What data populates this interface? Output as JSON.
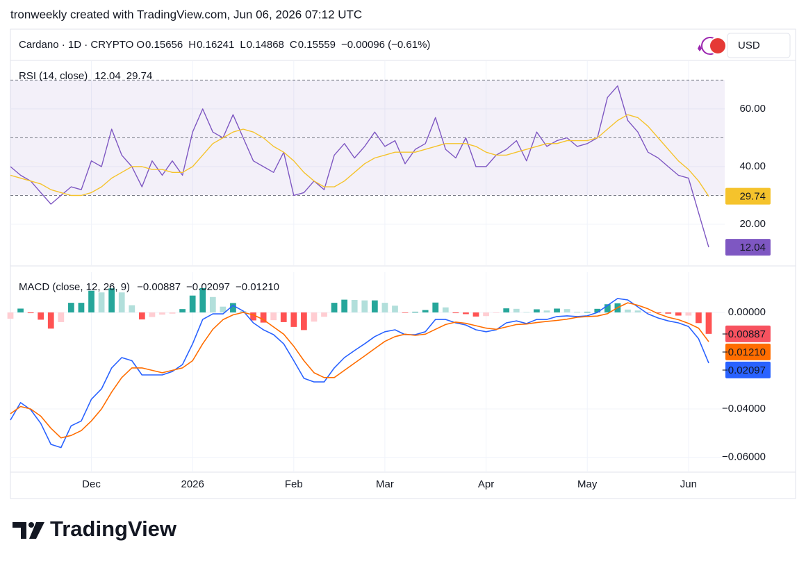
{
  "header": {
    "credit": "tronweekly created with TradingView.com, Jun 06, 2026 07:12 UTC"
  },
  "symbol": {
    "name": "Cardano · 1D · CRYPTO",
    "ohlc": [
      {
        "label": "O",
        "value": "0.15656"
      },
      {
        "label": "H",
        "value": "0.16241"
      },
      {
        "label": "L",
        "value": "0.14868"
      },
      {
        "label": "C",
        "value": "0.15559"
      }
    ],
    "change": "−0.00096 (−0.61%)"
  },
  "currency": "USD",
  "logo": "TradingView",
  "chart_data": [
    {
      "type": "line",
      "title": "RSI (14, close)",
      "ylim": [
        5.8,
        76.6
      ],
      "yticks": [
        {
          "value": 20,
          "label": "20.00"
        },
        {
          "value": 40,
          "label": "40.00"
        },
        {
          "value": 60,
          "label": "60.00"
        }
      ],
      "band": [
        30,
        70
      ],
      "midline": 50,
      "band_color": "#7e57c2",
      "grid": true,
      "series": [
        {
          "color": "#7e57c2",
          "last_label": "12.04",
          "values": [
            40,
            37,
            35,
            31,
            27,
            30,
            33,
            32,
            42,
            40,
            53,
            44,
            40,
            33,
            42,
            37,
            42,
            37,
            52,
            60,
            52,
            50,
            58,
            50,
            42,
            40,
            38,
            45,
            30,
            31,
            35,
            32,
            44,
            48,
            43,
            47,
            52,
            47,
            49,
            41,
            46,
            48,
            57,
            46,
            43,
            50,
            40,
            40,
            44,
            46,
            49,
            42,
            52,
            47,
            49,
            50,
            47,
            48,
            50,
            64,
            68,
            56,
            52,
            45,
            43,
            40,
            37,
            36,
            24,
            12.04
          ]
        },
        {
          "color": "#f5c32c",
          "last_label": "29.74",
          "values": [
            37,
            36,
            35,
            34,
            32,
            31,
            30,
            30,
            31,
            33,
            36,
            38,
            40,
            40,
            39,
            39,
            38,
            38,
            40,
            44,
            48,
            50,
            52,
            53,
            52,
            50,
            47,
            45,
            42,
            38,
            35,
            33,
            33,
            35,
            38,
            41,
            43,
            44,
            45,
            45,
            45,
            46,
            47,
            48,
            48,
            48,
            47,
            45,
            44,
            44,
            45,
            46,
            47,
            48,
            48,
            49,
            49,
            49,
            50,
            53,
            56,
            58,
            57,
            54,
            50,
            46,
            42,
            39,
            35,
            29.74
          ]
        }
      ]
    },
    {
      "type": "macd",
      "title": "MACD (close, 12, 26, 9)",
      "categories": [
        null,
        null,
        null,
        null,
        null,
        null,
        null,
        null,
        "Dec",
        null,
        null,
        null,
        null,
        null,
        null,
        null,
        null,
        null,
        "2026",
        null,
        null,
        null,
        null,
        null,
        null,
        null,
        null,
        null,
        "Feb",
        null,
        null,
        null,
        null,
        null,
        null,
        null,
        null,
        "Mar",
        null,
        null,
        null,
        null,
        null,
        null,
        null,
        null,
        null,
        "Apr",
        null,
        null,
        null,
        null,
        null,
        null,
        null,
        null,
        null,
        "May",
        null,
        null,
        null,
        null,
        null,
        null,
        null,
        null,
        null,
        "Jun",
        null,
        null
      ],
      "ylim": [
        -0.0662,
        0.0167
      ],
      "yticks": [
        {
          "value": 0,
          "label": "0.00000"
        },
        {
          "value": -0.04,
          "label": "−0.04000"
        },
        {
          "value": -0.06,
          "label": "−0.06000"
        }
      ],
      "grid": true,
      "series": [
        {
          "type": "bar",
          "color": "#f7525f",
          "last_label": "−0.00887",
          "bar_colors": [
            "#26a69a",
            "#b2dfdb",
            "#ffcdd2",
            "#ff5252"
          ],
          "values": [
            -0.0026,
            0.0016,
            -0.0003,
            -0.003,
            -0.0067,
            -0.004,
            0.004,
            0.004,
            0.009,
            0.0083,
            0.01,
            0.0083,
            0.003,
            -0.0029,
            -0.0019,
            -0.0009,
            -0.0005,
            0.0014,
            0.007,
            0.0101,
            0.0064,
            0.0024,
            0.0039,
            0.0006,
            -0.0033,
            -0.0042,
            -0.0032,
            -0.004,
            -0.006,
            -0.0073,
            -0.0038,
            -0.0018,
            0.004,
            0.0053,
            0.0052,
            0.005,
            0.005,
            0.004,
            0.0028,
            -0.0002,
            0.0003,
            0.001,
            0.0041,
            0.0021,
            -0.0003,
            -0.0007,
            -0.0017,
            -0.0015,
            -0.0002,
            0.0017,
            0.0015,
            0.0002,
            0.0013,
            0.0008,
            0.0016,
            0.0014,
            0.0003,
            0.0003,
            0.0015,
            0.0034,
            0.0038,
            0.0012,
            0.0008,
            -0.0001,
            -0.0003,
            -0.0005,
            -0.0013,
            -0.0013,
            -0.0044,
            -0.00887
          ]
        },
        {
          "type": "line",
          "color": "#2962ff",
          "last_label": "−0.02097",
          "values": [
            -0.0446,
            -0.0374,
            -0.0403,
            -0.046,
            -0.0547,
            -0.056,
            -0.047,
            -0.045,
            -0.036,
            -0.0317,
            -0.023,
            -0.0187,
            -0.02,
            -0.0259,
            -0.0259,
            -0.0259,
            -0.0245,
            -0.0216,
            -0.013,
            -0.0029,
            -0.0006,
            -0.0006,
            0.0029,
            0.0006,
            -0.0043,
            -0.0072,
            -0.0092,
            -0.013,
            -0.02,
            -0.0273,
            -0.0288,
            -0.0288,
            -0.023,
            -0.0187,
            -0.0158,
            -0.013,
            -0.01,
            -0.008,
            -0.0072,
            -0.0092,
            -0.0092,
            -0.008,
            -0.0029,
            -0.0029,
            -0.0043,
            -0.0052,
            -0.0072,
            -0.008,
            -0.0072,
            -0.0043,
            -0.0035,
            -0.0046,
            -0.0029,
            -0.0029,
            -0.0017,
            -0.0014,
            -0.0017,
            -0.0014,
            0,
            0.0029,
            0.0058,
            0.0052,
            0.0023,
            -0.0006,
            -0.0023,
            -0.0035,
            -0.0043,
            -0.0058,
            -0.0109,
            -0.02097
          ]
        },
        {
          "type": "line",
          "color": "#ff6d00",
          "last_label": "−0.01210",
          "values": [
            -0.042,
            -0.039,
            -0.04,
            -0.043,
            -0.048,
            -0.052,
            -0.051,
            -0.049,
            -0.045,
            -0.04,
            -0.033,
            -0.027,
            -0.023,
            -0.023,
            -0.024,
            -0.025,
            -0.024,
            -0.023,
            -0.02,
            -0.013,
            -0.007,
            -0.003,
            -0.001,
            0,
            -0.001,
            -0.003,
            -0.006,
            -0.009,
            -0.014,
            -0.02,
            -0.025,
            -0.027,
            -0.027,
            -0.024,
            -0.021,
            -0.018,
            -0.015,
            -0.012,
            -0.01,
            -0.009,
            -0.0095,
            -0.009,
            -0.007,
            -0.005,
            -0.004,
            -0.0045,
            -0.0055,
            -0.0065,
            -0.007,
            -0.006,
            -0.005,
            -0.0048,
            -0.0042,
            -0.0037,
            -0.0033,
            -0.0028,
            -0.002,
            -0.0017,
            -0.0015,
            -0.0005,
            0.002,
            0.004,
            0.003,
            0.0015,
            -0.0005,
            -0.002,
            -0.003,
            -0.0045,
            -0.0065,
            -0.0121
          ]
        }
      ]
    }
  ]
}
